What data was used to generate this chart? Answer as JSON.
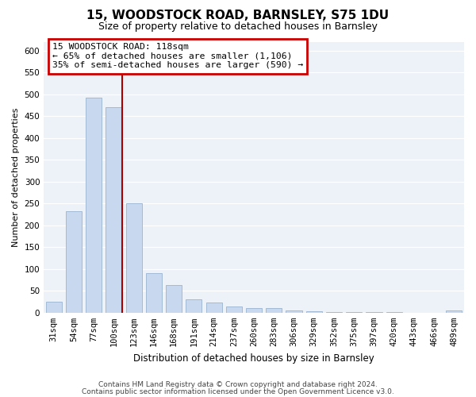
{
  "title": "15, WOODSTOCK ROAD, BARNSLEY, S75 1DU",
  "subtitle": "Size of property relative to detached houses in Barnsley",
  "xlabel": "Distribution of detached houses by size in Barnsley",
  "ylabel": "Number of detached properties",
  "categories": [
    "31sqm",
    "54sqm",
    "77sqm",
    "100sqm",
    "123sqm",
    "146sqm",
    "168sqm",
    "191sqm",
    "214sqm",
    "237sqm",
    "260sqm",
    "283sqm",
    "306sqm",
    "329sqm",
    "352sqm",
    "375sqm",
    "397sqm",
    "420sqm",
    "443sqm",
    "466sqm",
    "489sqm"
  ],
  "values": [
    25,
    233,
    492,
    470,
    250,
    90,
    63,
    31,
    23,
    14,
    11,
    11,
    5,
    3,
    2,
    1,
    1,
    1,
    0,
    0,
    5
  ],
  "bar_color": "#c8d8ee",
  "bar_edge_color": "#9ab3d0",
  "vline_color": "#aa0000",
  "annotation_title": "15 WOODSTOCK ROAD: 118sqm",
  "annotation_line1": "← 65% of detached houses are smaller (1,106)",
  "annotation_line2": "35% of semi-detached houses are larger (590) →",
  "annotation_box_edgecolor": "#cc0000",
  "ylim": [
    0,
    620
  ],
  "yticks": [
    0,
    50,
    100,
    150,
    200,
    250,
    300,
    350,
    400,
    450,
    500,
    550,
    600
  ],
  "footer1": "Contains HM Land Registry data © Crown copyright and database right 2024.",
  "footer2": "Contains public sector information licensed under the Open Government Licence v3.0.",
  "bg_color": "#edf2f9",
  "grid_color": "#d0daea",
  "title_fontsize": 11,
  "subtitle_fontsize": 9,
  "ylabel_fontsize": 8,
  "xlabel_fontsize": 8.5,
  "tick_fontsize": 7.5,
  "footer_fontsize": 6.5
}
